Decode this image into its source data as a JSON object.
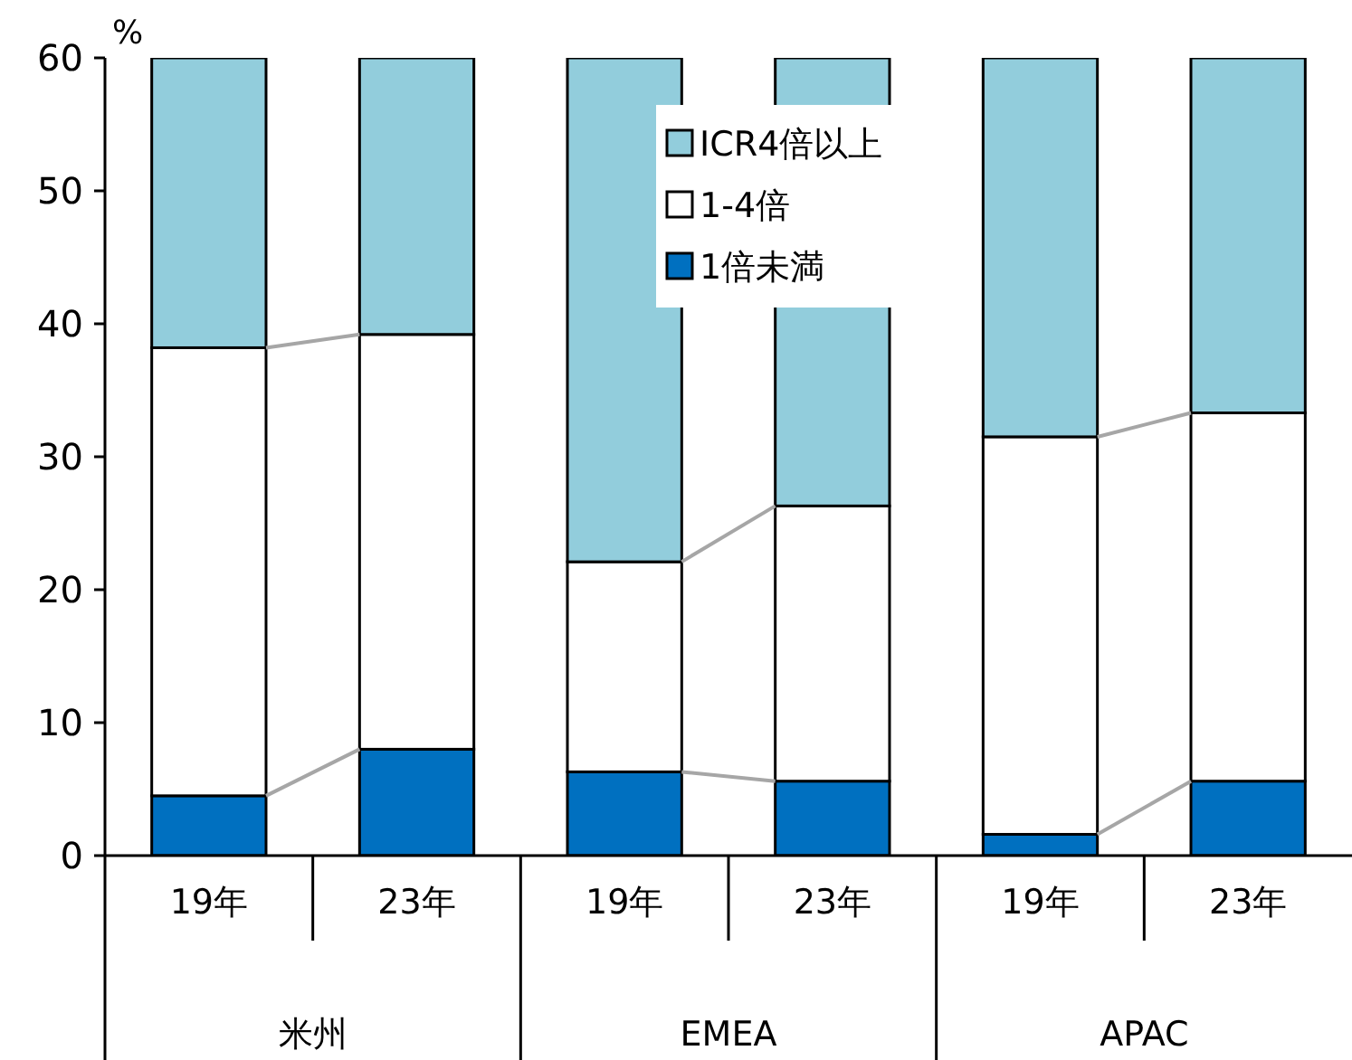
{
  "chart_data": {
    "type": "bar",
    "stacked": true,
    "ylabel": "%",
    "categories": [
      "19年",
      "23年",
      "19年",
      "23年",
      "19年",
      "23年"
    ],
    "series": [
      {
        "name": "1倍未満",
        "color": "#0070c0",
        "values": [
          4.5,
          8.0,
          6.3,
          5.6,
          1.6,
          5.6
        ]
      },
      {
        "name": "1-4倍",
        "color": "#ffffff",
        "values": [
          33.7,
          31.2,
          15.8,
          20.7,
          29.9,
          27.7
        ]
      },
      {
        "name": "ICR4倍以上",
        "color": "#92cddc",
        "values": [
          21.8,
          20.8,
          37.9,
          33.7,
          28.5,
          26.7
        ]
      }
    ],
    "ylim": [
      0,
      60
    ],
    "yticks": [
      0,
      10,
      20,
      30,
      40,
      50,
      60
    ],
    "legend": "top",
    "annotations": [
      "米州",
      "EMEA",
      "APAC"
    ]
  }
}
